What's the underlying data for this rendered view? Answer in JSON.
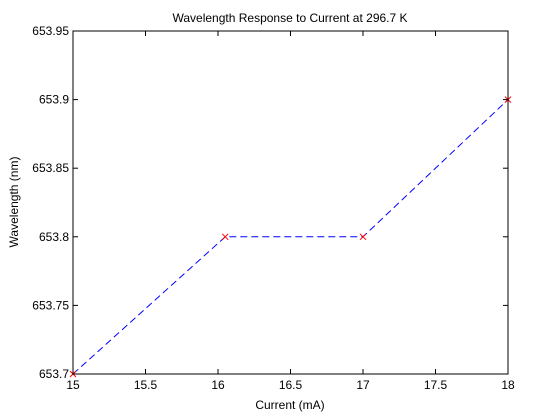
{
  "chart_data": {
    "type": "line",
    "title": "Wavelength Response to Current at 296.7 K",
    "xlabel": "Current (mA)",
    "ylabel": "Wavelength (nm)",
    "xlim": [
      15,
      18
    ],
    "ylim": [
      653.7,
      653.95
    ],
    "x_ticks": [
      15,
      15.5,
      16,
      16.5,
      17,
      17.5,
      18
    ],
    "x_tick_labels": [
      "15",
      "15.5",
      "16",
      "16.5",
      "17",
      "17.5",
      "18"
    ],
    "y_ticks": [
      653.7,
      653.75,
      653.8,
      653.85,
      653.9,
      653.95
    ],
    "y_tick_labels": [
      "653.7",
      "653.75",
      "653.8",
      "653.85",
      "653.9",
      "653.95"
    ],
    "grid": false,
    "series": [
      {
        "x": [
          15,
          16.05,
          17,
          18
        ],
        "y": [
          653.7,
          653.8,
          653.8,
          653.9
        ],
        "line_color": "#0000ff",
        "line_style": "dashed",
        "marker": "x",
        "marker_color": "#ff0000"
      }
    ]
  }
}
